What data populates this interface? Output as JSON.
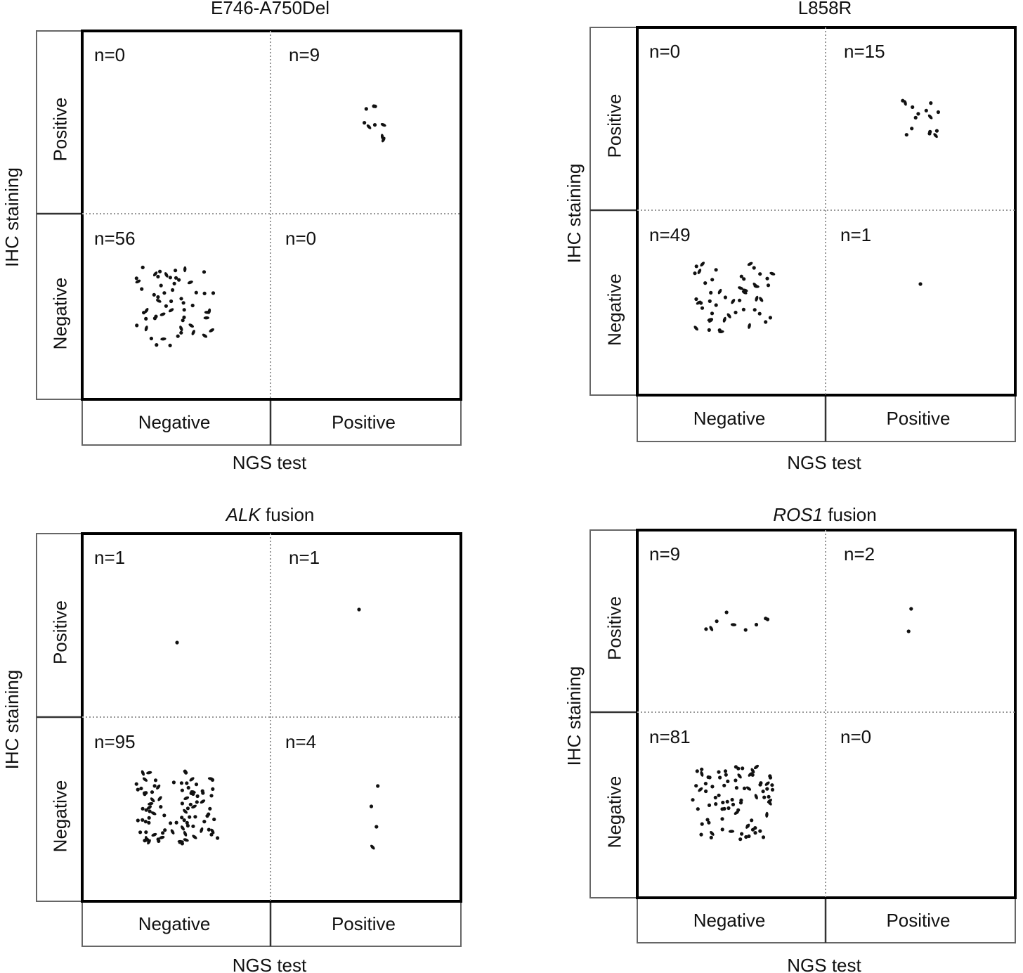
{
  "chart_data": [
    {
      "type": "scatter",
      "title_italic": "",
      "title_rest": "E746-A750Del",
      "xlabel": "NGS test",
      "ylabel": "IHC staining",
      "x_categories": [
        "Negative",
        "Positive"
      ],
      "y_categories": [
        "Positive",
        "Negative"
      ],
      "cells": {
        "neg_pos": "n=0",
        "pos_pos": "n=9",
        "neg_neg": "n=56",
        "pos_neg": "n=0"
      },
      "counts": {
        "neg_pos": 0,
        "pos_pos": 9,
        "neg_neg": 56,
        "pos_neg": 0
      }
    },
    {
      "type": "scatter",
      "title_italic": "",
      "title_rest": "L858R",
      "xlabel": "NGS test",
      "ylabel": "IHC staining",
      "x_categories": [
        "Negative",
        "Positive"
      ],
      "y_categories": [
        "Positive",
        "Negative"
      ],
      "cells": {
        "neg_pos": "n=0",
        "pos_pos": "n=15",
        "neg_neg": "n=49",
        "pos_neg": "n=1"
      },
      "counts": {
        "neg_pos": 0,
        "pos_pos": 15,
        "neg_neg": 49,
        "pos_neg": 1
      }
    },
    {
      "type": "scatter",
      "title_italic": "ALK",
      "title_rest": " fusion",
      "xlabel": "NGS test",
      "ylabel": "IHC staining",
      "x_categories": [
        "Negative",
        "Positive"
      ],
      "y_categories": [
        "Positive",
        "Negative"
      ],
      "cells": {
        "neg_pos": "n=1",
        "pos_pos": "n=1",
        "neg_neg": "n=95",
        "pos_neg": "n=4"
      },
      "counts": {
        "neg_pos": 1,
        "pos_pos": 1,
        "neg_neg": 95,
        "pos_neg": 4
      }
    },
    {
      "type": "scatter",
      "title_italic": "ROS1",
      "title_rest": " fusion",
      "xlabel": "NGS test",
      "ylabel": "IHC staining",
      "x_categories": [
        "Negative",
        "Positive"
      ],
      "y_categories": [
        "Positive",
        "Negative"
      ],
      "cells": {
        "neg_pos": "n=9",
        "pos_pos": "n=2",
        "neg_neg": "n=81",
        "pos_neg": "n=0"
      },
      "counts": {
        "neg_pos": 9,
        "pos_pos": 2,
        "neg_neg": 81,
        "pos_neg": 0
      }
    }
  ]
}
